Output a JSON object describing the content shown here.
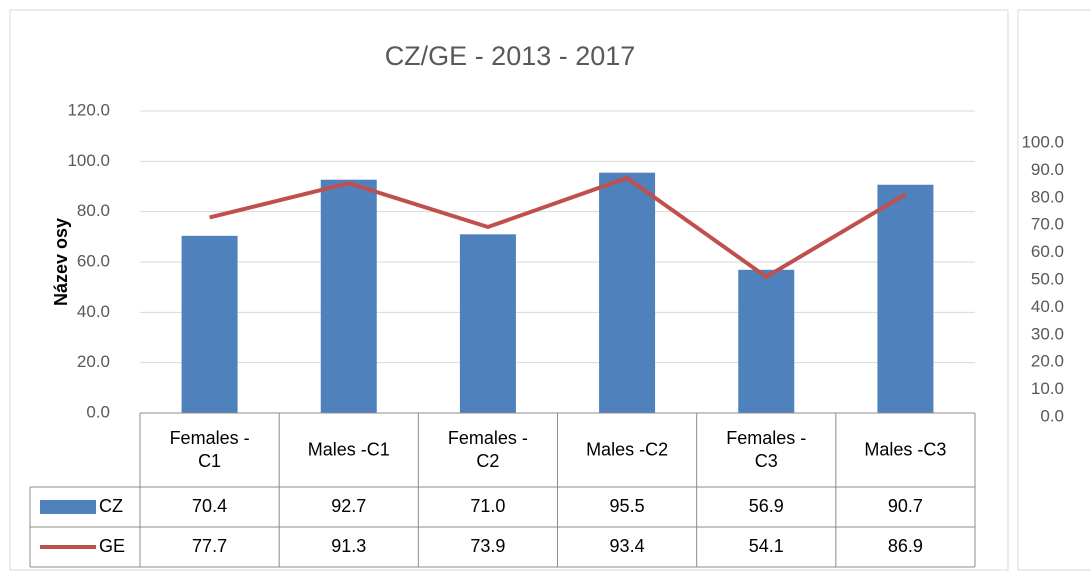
{
  "chart_data": [
    {
      "type": "bar",
      "title": "CZ/GE - 2013 - 2017",
      "y_label": "Název osy",
      "categories": [
        "Females - C1",
        "Males -C1",
        "Females - C2",
        "Males -C2",
        "Females - C3",
        "Males -C3"
      ],
      "series": [
        {
          "name": "CZ",
          "type": "bar",
          "color": "#4f81bd",
          "values": [
            70.4,
            92.7,
            71.0,
            95.5,
            56.9,
            90.7
          ],
          "value_labels": [
            "70.4",
            "92.7",
            "71.0",
            "95.5",
            "56.9",
            "90.7"
          ]
        },
        {
          "name": "GE",
          "type": "line",
          "color": "#c0504d",
          "values": [
            77.7,
            91.3,
            73.9,
            93.4,
            54.1,
            86.9
          ],
          "value_labels": [
            "77.7",
            "91.3",
            "73.9",
            "93.4",
            "54.1",
            "86.9"
          ]
        }
      ],
      "ylim": [
        0,
        120
      ],
      "yticks": [
        {
          "value": 0,
          "label": "0.0"
        },
        {
          "value": 20,
          "label": "20.0"
        },
        {
          "value": 40,
          "label": "40.0"
        },
        {
          "value": 60,
          "label": "60.0"
        },
        {
          "value": 80,
          "label": "80.0"
        },
        {
          "value": 100,
          "label": "100.0"
        },
        {
          "value": 120,
          "label": "120.0"
        }
      ],
      "grid": true,
      "data_table": true
    },
    {
      "type": "bar",
      "ylim": [
        0,
        100
      ],
      "yticks": [
        {
          "value": 0,
          "label": "0.0"
        },
        {
          "value": 10,
          "label": "10.0"
        },
        {
          "value": 20,
          "label": "20.0"
        },
        {
          "value": 30,
          "label": "30.0"
        },
        {
          "value": 40,
          "label": "40.0"
        },
        {
          "value": 50,
          "label": "50.0"
        },
        {
          "value": 60,
          "label": "60.0"
        },
        {
          "value": 70,
          "label": "70.0"
        },
        {
          "value": 80,
          "label": "80.0"
        },
        {
          "value": 90,
          "label": "90.0"
        },
        {
          "value": 100,
          "label": "100.0"
        }
      ]
    }
  ]
}
